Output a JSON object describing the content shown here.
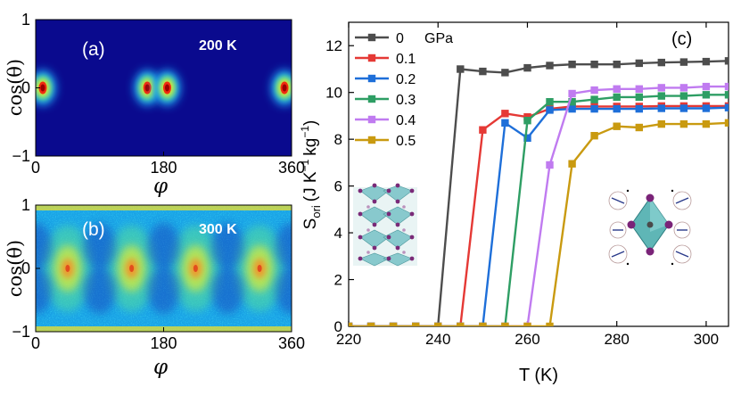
{
  "chart_data": [
    {
      "type": "heatmap",
      "panel_label": "(a)",
      "temperature_label": "200 K",
      "xlabel": "φ",
      "ylabel": "cos(θ)",
      "xlim": [
        0,
        360
      ],
      "ylim": [
        -1,
        1
      ],
      "x_ticks": [
        0,
        180,
        360
      ],
      "y_ticks": [
        -1,
        0,
        1
      ],
      "x_tick_labels": [
        "0",
        "180",
        "360"
      ],
      "y_tick_labels": [
        "−1",
        "0",
        "1"
      ],
      "colormap": "jet",
      "hotspots": [
        {
          "phi": 10,
          "cos_theta": 0
        },
        {
          "phi": 157,
          "cos_theta": 0
        },
        {
          "phi": 185,
          "cos_theta": 0
        },
        {
          "phi": 350,
          "cos_theta": 0
        }
      ]
    },
    {
      "type": "heatmap",
      "panel_label": "(b)",
      "temperature_label": "300 K",
      "xlabel": "φ",
      "ylabel": "cos(θ)",
      "xlim": [
        0,
        360
      ],
      "ylim": [
        -1,
        1
      ],
      "x_ticks": [
        0,
        180,
        360
      ],
      "y_ticks": [
        -1,
        0,
        1
      ],
      "x_tick_labels": [
        "0",
        "180",
        "360"
      ],
      "y_tick_labels": [
        "−1",
        "0",
        "1"
      ],
      "colormap": "jet",
      "hotspots": [
        {
          "phi": 45,
          "cos_theta": 0
        },
        {
          "phi": 135,
          "cos_theta": 0
        },
        {
          "phi": 225,
          "cos_theta": 0
        },
        {
          "phi": 315,
          "cos_theta": 0
        }
      ]
    },
    {
      "type": "line",
      "panel_label": "(c)",
      "xlabel": "T (K)",
      "ylabel_main": "S",
      "ylabel_sub": "ori",
      "ylabel_units_a": "(J K",
      "ylabel_sup_a": "−1",
      "ylabel_units_b": "kg",
      "ylabel_sup_b": "−1",
      "ylabel_units_c": ")",
      "xlim": [
        220,
        305
      ],
      "ylim": [
        0,
        13
      ],
      "x_ticks": [
        220,
        240,
        260,
        280,
        300
      ],
      "y_ticks": [
        0,
        2,
        4,
        6,
        8,
        10,
        12
      ],
      "legend_unit": "GPa",
      "x": [
        220,
        225,
        230,
        235,
        240,
        245,
        250,
        255,
        260,
        265,
        270,
        275,
        280,
        285,
        290,
        295,
        300,
        305
      ],
      "series": [
        {
          "name": "0",
          "color": "#4d4d4d",
          "values": [
            0,
            0,
            0,
            0,
            0,
            11.0,
            10.9,
            10.85,
            11.05,
            11.15,
            11.2,
            11.2,
            11.2,
            11.25,
            11.28,
            11.3,
            11.32,
            11.35
          ]
        },
        {
          "name": "0.1",
          "color": "#e53935",
          "values": [
            0,
            0,
            0,
            0,
            0,
            0,
            8.4,
            9.1,
            8.95,
            9.3,
            9.4,
            9.4,
            9.4,
            9.4,
            9.42,
            9.42,
            9.42,
            9.42
          ]
        },
        {
          "name": "0.2",
          "color": "#1e6fd9",
          "values": [
            0,
            0,
            0,
            0,
            0,
            0,
            0,
            8.7,
            8.05,
            9.25,
            9.3,
            9.3,
            9.3,
            9.3,
            9.32,
            9.32,
            9.32,
            9.35
          ]
        },
        {
          "name": "0.3",
          "color": "#2e9e64",
          "values": [
            0,
            0,
            0,
            0,
            0,
            0,
            0,
            0,
            8.8,
            9.6,
            9.6,
            9.7,
            9.8,
            9.8,
            9.85,
            9.85,
            9.9,
            9.9
          ]
        },
        {
          "name": "0.4",
          "color": "#c07bf0",
          "values": [
            0,
            0,
            0,
            0,
            0,
            0,
            0,
            0,
            0,
            6.9,
            9.95,
            10.1,
            10.15,
            10.15,
            10.2,
            10.2,
            10.25,
            10.25
          ]
        },
        {
          "name": "0.5",
          "color": "#c99a10",
          "values": [
            0,
            0,
            0,
            0,
            0,
            0,
            0,
            0,
            0,
            0,
            6.95,
            8.15,
            8.55,
            8.5,
            8.65,
            8.65,
            8.65,
            8.7
          ]
        }
      ]
    }
  ]
}
